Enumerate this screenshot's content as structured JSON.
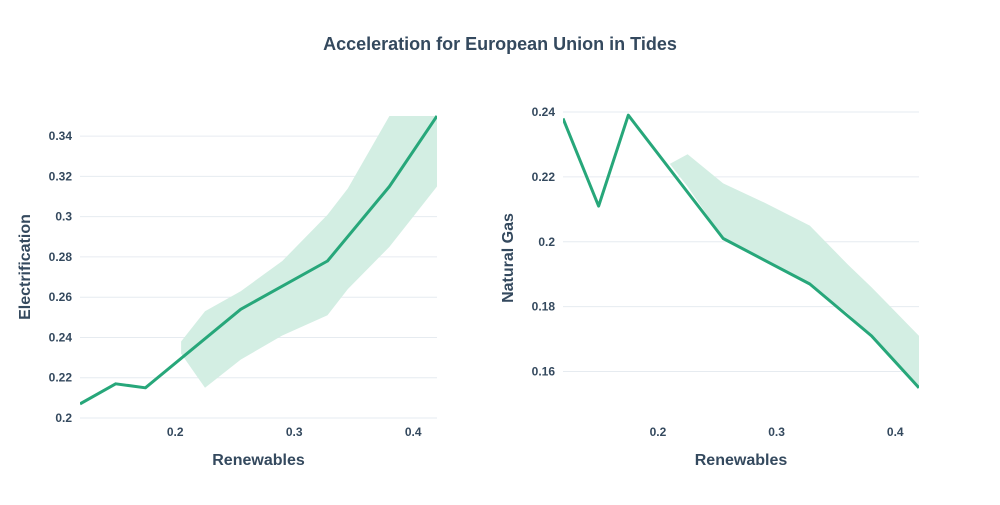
{
  "chart_data": {
    "title": "Acceleration for European Union in Tides",
    "colors": {
      "line": "#27a77a",
      "band": "#d3eee3"
    },
    "charts": [
      {
        "type": "line",
        "xlabel": "Renewables",
        "ylabel": "Electrification",
        "xlim": [
          0.12,
          0.42
        ],
        "ylim": [
          0.2,
          0.35
        ],
        "xticks": [
          0.2,
          0.3,
          0.4
        ],
        "xtick_labels": [
          "0.2",
          "0.3",
          "0.4"
        ],
        "yticks": [
          0.2,
          0.22,
          0.24,
          0.26,
          0.28,
          0.3,
          0.32,
          0.34
        ],
        "ytick_labels": [
          "0.2",
          "0.22",
          "0.24",
          "0.26",
          "0.28",
          "0.3",
          "0.32",
          "0.34"
        ],
        "grid": true,
        "series": {
          "x": [
            0.12,
            0.15,
            0.175,
            0.255,
            0.328,
            0.38,
            0.42
          ],
          "y": [
            0.207,
            0.217,
            0.215,
            0.254,
            0.278,
            0.315,
            0.35
          ]
        },
        "band": {
          "x": [
            0.205,
            0.225,
            0.255,
            0.29,
            0.328,
            0.345,
            0.38,
            0.42
          ],
          "upper": [
            0.238,
            0.253,
            0.263,
            0.278,
            0.301,
            0.314,
            0.35,
            0.35
          ],
          "lower": [
            0.232,
            0.215,
            0.229,
            0.241,
            0.251,
            0.264,
            0.285,
            0.315
          ]
        }
      },
      {
        "type": "line",
        "xlabel": "Renewables",
        "ylabel": "Natural Gas",
        "xlim": [
          0.12,
          0.42
        ],
        "ylim": [
          0.15,
          0.24
        ],
        "xticks": [
          0.2,
          0.3,
          0.4
        ],
        "xtick_labels": [
          "0.2",
          "0.3",
          "0.4"
        ],
        "yticks": [
          0.16,
          0.18,
          0.2,
          0.22,
          0.24
        ],
        "ytick_labels": [
          "0.16",
          "0.18",
          "0.2",
          "0.22",
          "0.24"
        ],
        "grid": true,
        "series": {
          "x": [
            0.12,
            0.15,
            0.175,
            0.255,
            0.328,
            0.38,
            0.42
          ],
          "y": [
            0.238,
            0.211,
            0.239,
            0.201,
            0.187,
            0.171,
            0.155
          ]
        },
        "band": {
          "x": [
            0.21,
            0.225,
            0.255,
            0.29,
            0.328,
            0.36,
            0.38,
            0.42
          ],
          "upper": [
            0.224,
            0.227,
            0.218,
            0.212,
            0.205,
            0.193,
            0.186,
            0.171
          ],
          "lower": [
            0.224,
            0.217,
            0.201,
            0.194,
            0.187,
            0.178,
            0.171,
            0.155
          ]
        }
      }
    ]
  }
}
